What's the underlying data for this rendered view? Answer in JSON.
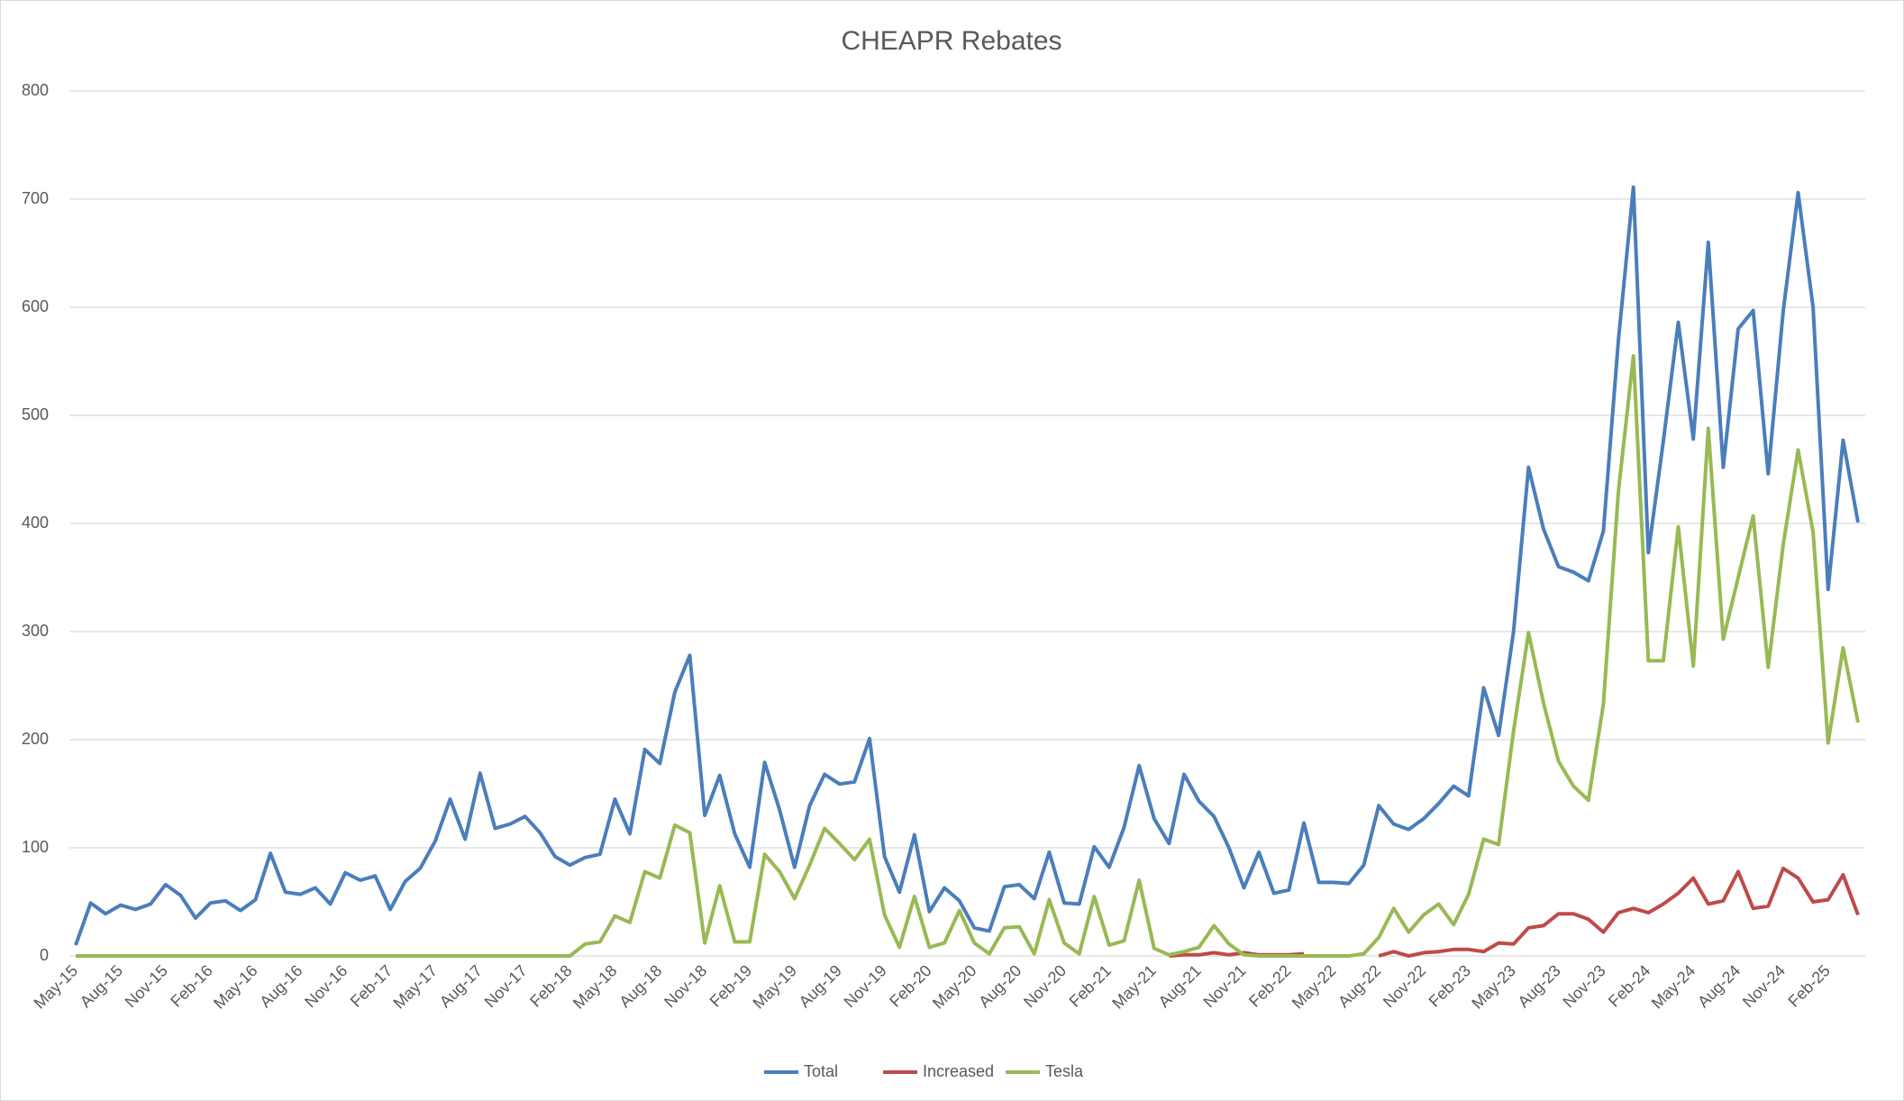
{
  "chart_data": {
    "type": "line",
    "title": "CHEAPR Rebates",
    "categories": [
      "May-15",
      null,
      null,
      "Aug-15",
      null,
      null,
      "Nov-15",
      null,
      null,
      "Feb-16",
      null,
      null,
      "May-16",
      null,
      null,
      "Aug-16",
      null,
      null,
      "Nov-16",
      null,
      null,
      "Feb-17",
      null,
      null,
      "May-17",
      null,
      null,
      "Aug-17",
      null,
      null,
      "Nov-17",
      null,
      null,
      "Feb-18",
      null,
      null,
      "May-18",
      null,
      null,
      "Aug-18",
      null,
      null,
      "Nov-18",
      null,
      null,
      "Feb-19",
      null,
      null,
      "May-19",
      null,
      null,
      "Aug-19",
      null,
      null,
      "Nov-19",
      null,
      null,
      "Feb-20",
      null,
      null,
      "May-20",
      null,
      null,
      "Aug-20",
      null,
      null,
      "Nov-20",
      null,
      null,
      "Feb-21",
      null,
      null,
      "May-21",
      null,
      null,
      "Aug-21",
      null,
      null,
      "Nov-21",
      null,
      null,
      "Feb-22",
      null,
      null,
      "May-22",
      null,
      null,
      "Aug-22",
      null,
      null,
      "Nov-22",
      null,
      null,
      "Feb-23",
      null,
      null,
      "May-23",
      null,
      null,
      "Aug-23",
      null,
      null,
      "Nov-23",
      null,
      null,
      "Feb-24",
      null,
      null,
      "May-24",
      null,
      null,
      "Aug-24",
      null,
      null,
      "Nov-24",
      null,
      null,
      "Feb-25",
      null,
      null
    ],
    "series": [
      {
        "name": "Total",
        "color": "#4a7ebb",
        "values": [
          10,
          49,
          39,
          47,
          43,
          48,
          66,
          56,
          35,
          49,
          51,
          42,
          52,
          95,
          59,
          57,
          63,
          48,
          77,
          70,
          74,
          43,
          69,
          81,
          106,
          145,
          108,
          169,
          118,
          122,
          129,
          114,
          92,
          84,
          91,
          94,
          145,
          113,
          191,
          178,
          244,
          278,
          130,
          167,
          113,
          82,
          179,
          135,
          82,
          139,
          168,
          159,
          161,
          201,
          92,
          59,
          112,
          41,
          63,
          51,
          26,
          23,
          64,
          66,
          53,
          96,
          49,
          48,
          101,
          82,
          119,
          176,
          127,
          104,
          168,
          143,
          129,
          100,
          63,
          96,
          58,
          61,
          123,
          68,
          68,
          67,
          84,
          139,
          122,
          117,
          127,
          141,
          157,
          148,
          248,
          204,
          300,
          452,
          395,
          360,
          355,
          347,
          393,
          570,
          711,
          373,
          476,
          586,
          478,
          660,
          452,
          580,
          597,
          446,
          596,
          706,
          600,
          339,
          477,
          401
        ]
      },
      {
        "name": "Increased",
        "color": "#be4b48",
        "values": [
          null,
          null,
          null,
          null,
          null,
          null,
          null,
          null,
          null,
          null,
          null,
          null,
          null,
          null,
          null,
          null,
          null,
          null,
          null,
          null,
          null,
          null,
          null,
          null,
          null,
          null,
          null,
          null,
          null,
          null,
          null,
          null,
          null,
          null,
          null,
          null,
          null,
          null,
          null,
          null,
          null,
          null,
          null,
          null,
          null,
          null,
          null,
          null,
          null,
          null,
          null,
          null,
          null,
          null,
          null,
          null,
          null,
          null,
          null,
          null,
          null,
          null,
          null,
          null,
          null,
          null,
          null,
          null,
          null,
          null,
          null,
          null,
          null,
          0,
          1,
          1,
          3,
          1,
          3,
          1,
          1,
          1,
          2,
          null,
          null,
          null,
          null,
          0,
          4,
          0,
          3,
          4,
          6,
          6,
          4,
          12,
          11,
          26,
          28,
          39,
          39,
          34,
          22,
          40,
          44,
          40,
          48,
          58,
          72,
          48,
          51,
          78,
          44,
          46,
          81,
          72,
          50,
          52,
          75,
          38
        ]
      },
      {
        "name": "Tesla",
        "color": "#98b954",
        "values": [
          0,
          0,
          0,
          0,
          0,
          0,
          0,
          0,
          0,
          0,
          0,
          0,
          0,
          0,
          0,
          0,
          0,
          0,
          0,
          0,
          0,
          0,
          0,
          0,
          0,
          0,
          0,
          0,
          0,
          0,
          0,
          0,
          0,
          0,
          11,
          13,
          37,
          31,
          78,
          72,
          121,
          114,
          12,
          65,
          13,
          13,
          94,
          78,
          53,
          84,
          118,
          104,
          89,
          108,
          38,
          8,
          55,
          8,
          12,
          42,
          12,
          2,
          26,
          27,
          2,
          52,
          12,
          2,
          55,
          10,
          14,
          70,
          7,
          1,
          4,
          8,
          28,
          11,
          1,
          0,
          0,
          0,
          0,
          0,
          0,
          0,
          2,
          17,
          44,
          22,
          38,
          48,
          29,
          57,
          108,
          103,
          208,
          299,
          234,
          180,
          157,
          144,
          233,
          430,
          555,
          273,
          273,
          397,
          268,
          488,
          293,
          350,
          407,
          267,
          380,
          468,
          392,
          197,
          285,
          216
        ]
      }
    ],
    "ylim": [
      0,
      800
    ],
    "yticks": [
      0,
      100,
      200,
      300,
      400,
      500,
      600,
      700,
      800
    ],
    "grid": true,
    "legend": "bottom"
  }
}
